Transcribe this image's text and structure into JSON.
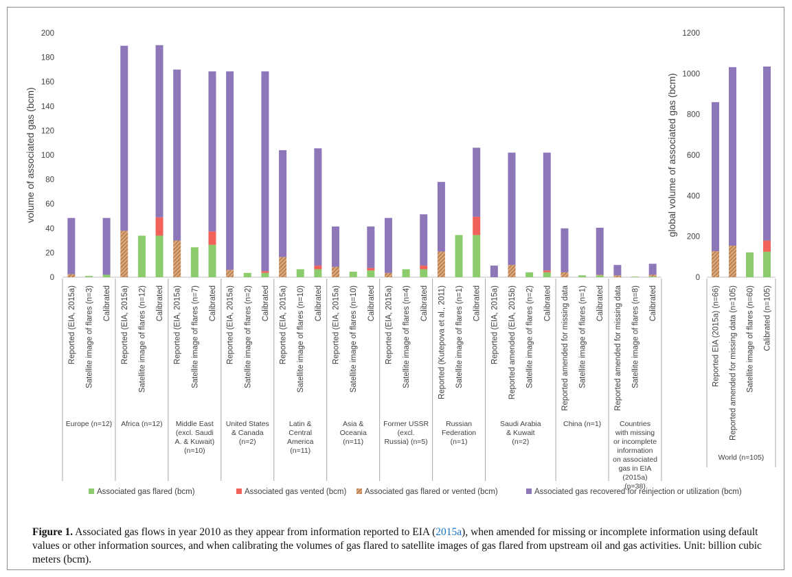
{
  "colors": {
    "flared": "#8dcc6c",
    "vented": "#f0625a",
    "flared_or_vented": "#c88a5a",
    "recovered": "#8e77b8",
    "axis": "#595959",
    "text": "#404040",
    "cite": "#1a73c9"
  },
  "chart_data": [
    {
      "type": "bar",
      "stacked": true,
      "ylabel": "volume of associated gas (bcm)",
      "ylim": [
        0,
        200
      ],
      "yticks": [
        0,
        20,
        40,
        60,
        80,
        100,
        120,
        140,
        160,
        180,
        200
      ],
      "groups": [
        {
          "label": "Europe (n=12)",
          "categories": [
            "Reported (EIA, 2015a)",
            "Satellite image of flares (n=3)",
            "Calibrated"
          ]
        },
        {
          "label": "Africa (n=12)",
          "categories": [
            "Reported (EIA, 2015a)",
            "Satellite image of flares (n=12)",
            "Calibrated"
          ]
        },
        {
          "label": "Middle East (excl. Saudi A. & Kuwait) (n=10)",
          "categories": [
            "Reported (EIA, 2015a)",
            "Satellite image of flares (n=7)",
            "Calibrated"
          ]
        },
        {
          "label": "United States & Canada (n=2)",
          "categories": [
            "Reported (EIA, 2015a)",
            "Satellite image of flares (n=2)",
            "Calibrated"
          ]
        },
        {
          "label": "Latin & Central America (n=11)",
          "categories": [
            "Reported (EIA, 2015a)",
            "Satellite image of flares (n=10)",
            "Calibrated"
          ]
        },
        {
          "label": "Asia & Oceania (n=11)",
          "categories": [
            "Reported (EIA, 2015a)",
            "Satellite image of flares (n=10)",
            "Calibrated"
          ]
        },
        {
          "label": "Former USSR (excl. Russia) (n=5)",
          "categories": [
            "Reported (EIA, 2015a)",
            "Satellite image of flares (n=4)",
            "Calibrated"
          ]
        },
        {
          "label": "Russian Federation (n=1)",
          "categories": [
            "Reported (Kutepova et al., 2011)",
            "Satellite image of flares (n=1)",
            "Calibrated"
          ]
        },
        {
          "label": "Saudi Arabia & Kuwait (n=2)",
          "categories": [
            "Reported (EIA, 2015a)",
            "Reported amended (EIA, 2015b)",
            "Satellite image of flares (n=2)",
            "Calibrated"
          ]
        },
        {
          "label": "China (n=1)",
          "categories": [
            "Reported amended for missing data",
            "Satellite image of flares (n=1)",
            "Calibrated"
          ]
        },
        {
          "label": "Countries with missing or incomplete information on associated gas in EIA (2015a) (n=38)",
          "categories": [
            "Reported amended for missing data",
            "Satellite image of flares (n=8)",
            "Calibrated"
          ]
        }
      ],
      "series": [
        {
          "name": "Associated gas flared (bcm)",
          "values": [
            0,
            1,
            2,
            0,
            34,
            34,
            0,
            24.5,
            26.5,
            0,
            3.5,
            3.5,
            0,
            6.5,
            6.5,
            0,
            4.5,
            5.5,
            0,
            6.5,
            6.5,
            0,
            34.5,
            34.5,
            0,
            0,
            4,
            4,
            0,
            1.5,
            1.5,
            0,
            0.5,
            0.5
          ]
        },
        {
          "name": "Associated gas vented (bcm)",
          "values": [
            0,
            0,
            0,
            0,
            0,
            15,
            0,
            0,
            11,
            0,
            0,
            1.5,
            0,
            0,
            3,
            0,
            0,
            2,
            0,
            0,
            3,
            0,
            0,
            15,
            0,
            0,
            0,
            1.5,
            0,
            0,
            0,
            0,
            0,
            0
          ]
        },
        {
          "name": "Associated gas flared or vented (bcm)",
          "values": [
            2.5,
            0,
            0,
            38,
            0,
            0,
            30,
            0,
            0,
            6,
            0,
            0,
            16.5,
            0,
            0,
            8.5,
            0,
            0,
            3.5,
            0,
            0,
            21,
            0,
            0,
            0,
            10,
            0,
            0,
            4,
            0,
            0.5,
            1.5,
            0,
            1.5
          ]
        },
        {
          "name": "Associated gas recovered for reinjection or utilization (bcm)",
          "values": [
            46,
            0,
            46.5,
            151.5,
            0,
            141,
            140,
            0,
            131,
            162.5,
            0,
            163.5,
            87.5,
            0,
            96,
            33,
            0,
            34,
            45,
            0,
            42,
            57,
            0,
            56.5,
            9.5,
            92,
            0,
            96.5,
            36,
            0,
            38.5,
            8.5,
            0,
            9
          ]
        }
      ]
    },
    {
      "type": "bar",
      "stacked": true,
      "ylabel": "global volume of associated gas (bcm)",
      "ylim": [
        0,
        1200
      ],
      "yticks": [
        0,
        200,
        400,
        600,
        800,
        1000,
        1200
      ],
      "groups": [
        {
          "label": "World (n=105)",
          "categories": [
            "Reported EIA (2015a) (n=66)",
            "Reported amended for missing data (n=105)",
            "Satellite image of flares (n=60)",
            "Calibrated (n=105)"
          ]
        }
      ],
      "series": [
        {
          "name": "Associated gas flared (bcm)",
          "values": [
            0,
            0,
            122,
            125
          ]
        },
        {
          "name": "Associated gas vented (bcm)",
          "values": [
            0,
            0,
            0,
            55
          ]
        },
        {
          "name": "Associated gas flared or vented (bcm)",
          "values": [
            128,
            155,
            0,
            0
          ]
        },
        {
          "name": "Associated gas recovered for reinjection or utilization (bcm)",
          "values": [
            732,
            877,
            0,
            855
          ]
        }
      ]
    }
  ],
  "legend": [
    {
      "label": "Associated gas flared (bcm)",
      "color": "#8dcc6c",
      "pattern": false
    },
    {
      "label": "Associated gas vented (bcm)",
      "color": "#f0625a",
      "pattern": false
    },
    {
      "label": "Associated gas flared or vented (bcm)",
      "color": "#c88a5a",
      "pattern": true
    },
    {
      "label": "Associated gas recovered for reinjection or utilization (bcm)",
      "color": "#8e77b8",
      "pattern": false
    }
  ],
  "caption": {
    "label": "Figure 1.",
    "text_before": "Associated gas flows in year 2010 as they appear from information reported to EIA (",
    "cite": "2015a",
    "text_after": "), when amended for missing or incomplete information using default values or other information sources, and when calibrating the volumes of gas flared to satellite images of gas flared from upstream oil and gas activities. Unit: billion cubic meters (bcm)."
  }
}
